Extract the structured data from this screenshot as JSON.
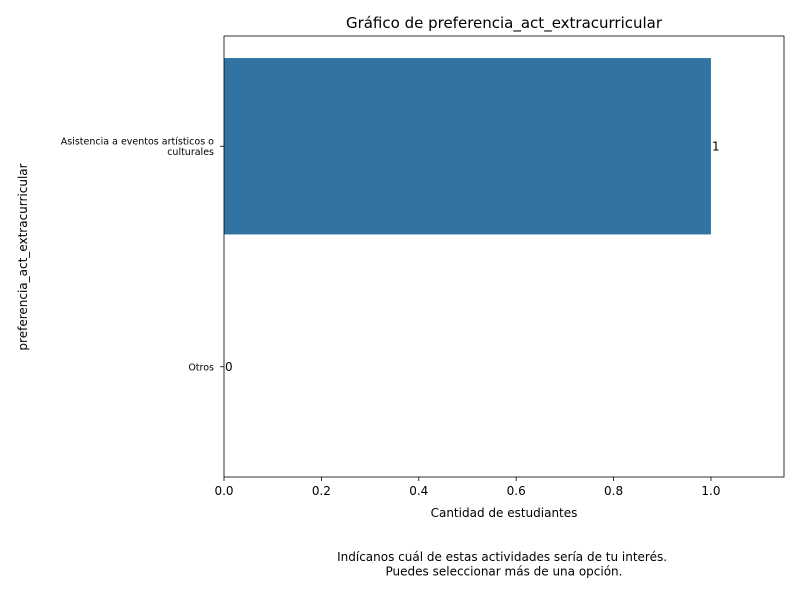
{
  "chart_data": {
    "type": "bar",
    "orientation": "horizontal",
    "title": "Gráfico de preferencia_act_extracurricular",
    "xlabel": "Cantidad de estudiantes",
    "ylabel": "preferencia_act_extracurricular",
    "categories": [
      [
        "Asistencia a eventos artísticos o",
        "culturales"
      ],
      [
        "Otros"
      ]
    ],
    "values": [
      1,
      0
    ],
    "value_labels": [
      "1",
      "0"
    ],
    "xlim": [
      0,
      1.15
    ],
    "xticks": [
      0,
      0.2,
      0.4,
      0.6,
      0.8,
      1.0
    ],
    "xtick_labels": [
      "0.0",
      "0.2",
      "0.4",
      "0.6",
      "0.8",
      "1.0"
    ],
    "bar_color": "#3274a1",
    "grid": false,
    "footnote": [
      "Indícanos cuál de estas actividades sería de tu interés.",
      "Puedes seleccionar más de una opción."
    ]
  }
}
